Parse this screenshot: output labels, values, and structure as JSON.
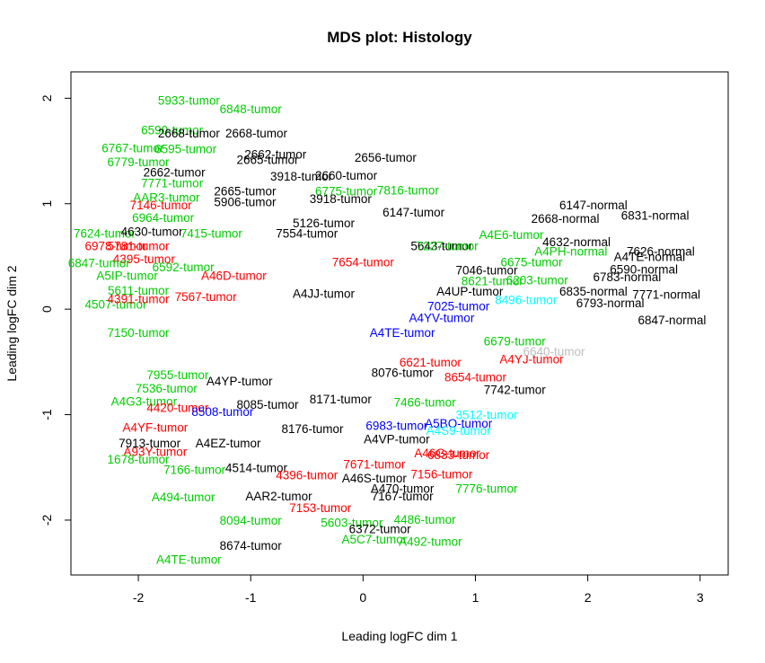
{
  "chart_data": {
    "type": "scatter",
    "title": "MDS plot: Histology",
    "xlabel": "Leading logFC dim 1",
    "ylabel": "Leading logFC dim 2",
    "xlim": [
      -2.6,
      3.25
    ],
    "ylim": [
      -2.52,
      2.25
    ],
    "xticks": [
      -2,
      -1,
      0,
      1,
      2,
      3
    ],
    "yticks": [
      -2,
      -1,
      0,
      1,
      2
    ],
    "grid": false,
    "colors": {
      "black": "#000000",
      "red": "#ff0000",
      "green": "#00cd00",
      "blue": "#0000ff",
      "cyan": "#00ffff",
      "gray": "#bebebe"
    },
    "points": [
      {
        "label": "5933-tumor",
        "x": -1.55,
        "y": 1.98,
        "color": "green"
      },
      {
        "label": "6848-tumor",
        "x": -1.0,
        "y": 1.9,
        "color": "green"
      },
      {
        "label": "6590-tumor",
        "x": -1.7,
        "y": 1.7,
        "color": "green"
      },
      {
        "label": "2668-tumor",
        "x": -1.55,
        "y": 1.67,
        "color": "black"
      },
      {
        "label": "2668-tumor",
        "x": -0.95,
        "y": 1.67,
        "color": "black"
      },
      {
        "label": "6767-tumor",
        "x": -2.05,
        "y": 1.53,
        "color": "green"
      },
      {
        "label": "6595-tumor",
        "x": -1.58,
        "y": 1.52,
        "color": "green"
      },
      {
        "label": "2662-tumor",
        "x": -0.78,
        "y": 1.47,
        "color": "black"
      },
      {
        "label": "2656-tumor",
        "x": 0.2,
        "y": 1.44,
        "color": "black"
      },
      {
        "label": "2665-tumor",
        "x": -0.85,
        "y": 1.42,
        "color": "black"
      },
      {
        "label": "6779-tumor",
        "x": -2.0,
        "y": 1.4,
        "color": "green"
      },
      {
        "label": "2662-tumor",
        "x": -1.68,
        "y": 1.3,
        "color": "black"
      },
      {
        "label": "3918-tumor",
        "x": -0.55,
        "y": 1.26,
        "color": "black"
      },
      {
        "label": "2660-tumor",
        "x": -0.15,
        "y": 1.27,
        "color": "black"
      },
      {
        "label": "7771-tumor",
        "x": -1.7,
        "y": 1.2,
        "color": "green"
      },
      {
        "label": "2665-tumor",
        "x": -1.05,
        "y": 1.12,
        "color": "black"
      },
      {
        "label": "6775-tumor",
        "x": -0.15,
        "y": 1.12,
        "color": "green"
      },
      {
        "label": "7816-tumor",
        "x": 0.4,
        "y": 1.13,
        "color": "green"
      },
      {
        "label": "AAR3-tumor",
        "x": -1.75,
        "y": 1.06,
        "color": "green"
      },
      {
        "label": "3918-tumor",
        "x": -0.2,
        "y": 1.05,
        "color": "black"
      },
      {
        "label": "5906-tumor",
        "x": -1.05,
        "y": 1.02,
        "color": "black"
      },
      {
        "label": "7146-tumor",
        "x": -1.8,
        "y": 0.99,
        "color": "red"
      },
      {
        "label": "6147-tumor",
        "x": 0.45,
        "y": 0.92,
        "color": "black"
      },
      {
        "label": "6964-tumor",
        "x": -1.78,
        "y": 0.87,
        "color": "green"
      },
      {
        "label": "5126-tumor",
        "x": -0.35,
        "y": 0.82,
        "color": "black"
      },
      {
        "label": "7624-tumor",
        "x": -2.3,
        "y": 0.72,
        "color": "green"
      },
      {
        "label": "4630-tumor",
        "x": -1.88,
        "y": 0.74,
        "color": "black"
      },
      {
        "label": "7415-tumor",
        "x": -1.35,
        "y": 0.72,
        "color": "green"
      },
      {
        "label": "7554-tumor",
        "x": -0.5,
        "y": 0.72,
        "color": "black"
      },
      {
        "label": "5643-tumor",
        "x": 0.7,
        "y": 0.6,
        "color": "black"
      },
      {
        "label": "A4E6-tumor",
        "x": 1.32,
        "y": 0.71,
        "color": "green"
      },
      {
        "label": "6978-tumor",
        "x": -2.2,
        "y": 0.6,
        "color": "red"
      },
      {
        "label": "5781-tumor",
        "x": -2.0,
        "y": 0.6,
        "color": "red"
      },
      {
        "label": "4395-tumor",
        "x": -1.95,
        "y": 0.48,
        "color": "red"
      },
      {
        "label": "6847-tumor",
        "x": -2.35,
        "y": 0.44,
        "color": "green"
      },
      {
        "label": "6592-tumor",
        "x": -1.6,
        "y": 0.4,
        "color": "green"
      },
      {
        "label": "A5IP-tumor",
        "x": -2.1,
        "y": 0.32,
        "color": "green"
      },
      {
        "label": "A46D-tumor",
        "x": -1.15,
        "y": 0.32,
        "color": "red"
      },
      {
        "label": "7046-tumor",
        "x": 1.1,
        "y": 0.37,
        "color": "black"
      },
      {
        "label": "8621-tumor",
        "x": 1.15,
        "y": 0.27,
        "color": "green"
      },
      {
        "label": "6203-tumor",
        "x": 1.55,
        "y": 0.28,
        "color": "green"
      },
      {
        "label": "5611-tumor",
        "x": -2.0,
        "y": 0.18,
        "color": "green"
      },
      {
        "label": "7567-tumor",
        "x": -1.4,
        "y": 0.12,
        "color": "red"
      },
      {
        "label": "A4UP-tumor",
        "x": 0.95,
        "y": 0.17,
        "color": "black"
      },
      {
        "label": "A4JJ-tumor",
        "x": -0.35,
        "y": 0.15,
        "color": "black"
      },
      {
        "label": "4507-tumor",
        "x": -2.2,
        "y": 0.05,
        "color": "green"
      },
      {
        "label": "4391-tumor",
        "x": -2.0,
        "y": 0.1,
        "color": "red"
      },
      {
        "label": "8496-tumor",
        "x": 1.45,
        "y": 0.09,
        "color": "cyan"
      },
      {
        "label": "6835-normal",
        "x": 2.05,
        "y": 0.17,
        "color": "black"
      },
      {
        "label": "6847-normal",
        "x": 2.75,
        "y": -0.1,
        "color": "black"
      },
      {
        "label": "7150-tumor",
        "x": -2.0,
        "y": -0.22,
        "color": "green"
      },
      {
        "label": "7536-tumor",
        "x": -1.75,
        "y": -0.75,
        "color": "green"
      },
      {
        "label": "7955-tumor",
        "x": -1.65,
        "y": -0.62,
        "color": "green"
      },
      {
        "label": "A4YP-tumor",
        "x": -1.1,
        "y": -0.68,
        "color": "black"
      },
      {
        "label": "8076-tumor",
        "x": 0.35,
        "y": -0.6,
        "color": "black"
      },
      {
        "label": "A4YJ-tumor",
        "x": 1.5,
        "y": -0.47,
        "color": "red"
      },
      {
        "label": "8654-tumor",
        "x": 1.0,
        "y": -0.64,
        "color": "red"
      },
      {
        "label": "A4G3-tumor",
        "x": -1.95,
        "y": -0.87,
        "color": "green"
      },
      {
        "label": "4420-tumor",
        "x": -1.65,
        "y": -0.93,
        "color": "red"
      },
      {
        "label": "8085-tumor",
        "x": -0.85,
        "y": -0.9,
        "color": "black"
      },
      {
        "label": "8171-tumor",
        "x": -0.2,
        "y": -0.85,
        "color": "black"
      },
      {
        "label": "7742-tumor",
        "x": 1.35,
        "y": -0.76,
        "color": "black"
      },
      {
        "label": "8508-tumor",
        "x": -1.25,
        "y": -0.97,
        "color": "blue"
      },
      {
        "label": "3512-tumor",
        "x": 1.1,
        "y": -1.0,
        "color": "cyan"
      },
      {
        "label": "A4YF-tumor",
        "x": -1.85,
        "y": -1.12,
        "color": "red"
      },
      {
        "label": "8176-tumor",
        "x": -0.45,
        "y": -1.13,
        "color": "black"
      },
      {
        "label": "6983-tumor",
        "x": 0.3,
        "y": -1.1,
        "color": "blue"
      },
      {
        "label": "A5BO-tumor",
        "x": 0.85,
        "y": -1.08,
        "color": "blue"
      },
      {
        "label": "7913-tumor",
        "x": -1.9,
        "y": -1.27,
        "color": "black"
      },
      {
        "label": "A4EZ-tumor",
        "x": -1.2,
        "y": -1.27,
        "color": "black"
      },
      {
        "label": "A4VP-tumor",
        "x": 0.3,
        "y": -1.23,
        "color": "black"
      },
      {
        "label": "A93Y-tumor",
        "x": -1.85,
        "y": -1.35,
        "color": "red"
      },
      {
        "label": "1678-tumor",
        "x": -2.0,
        "y": -1.42,
        "color": "green"
      },
      {
        "label": "7166-tumor",
        "x": -1.5,
        "y": -1.52,
        "color": "green"
      },
      {
        "label": "4514-tumor",
        "x": -0.95,
        "y": -1.5,
        "color": "black"
      },
      {
        "label": "7671-tumor",
        "x": 0.1,
        "y": -1.47,
        "color": "red"
      },
      {
        "label": "4396-tumor",
        "x": -0.5,
        "y": -1.57,
        "color": "red"
      },
      {
        "label": "A46S-tumor",
        "x": 0.1,
        "y": -1.6,
        "color": "black"
      },
      {
        "label": "7156-tumor",
        "x": 0.7,
        "y": -1.56,
        "color": "red"
      },
      {
        "label": "A470-tumor",
        "x": 0.35,
        "y": -1.7,
        "color": "black"
      },
      {
        "label": "7776-tumor",
        "x": 1.1,
        "y": -1.7,
        "color": "green"
      },
      {
        "label": "A494-tumor",
        "x": -1.6,
        "y": -1.78,
        "color": "green"
      },
      {
        "label": "AAR2-tumor",
        "x": -0.75,
        "y": -1.77,
        "color": "black"
      },
      {
        "label": "7167-tumor",
        "x": 0.35,
        "y": -1.77,
        "color": "black"
      },
      {
        "label": "7153-tumor",
        "x": -0.38,
        "y": -1.88,
        "color": "red"
      },
      {
        "label": "8094-tumor",
        "x": -1.0,
        "y": -2.0,
        "color": "green"
      },
      {
        "label": "5603-tumor",
        "x": -0.1,
        "y": -2.02,
        "color": "green"
      },
      {
        "label": "4486-tumor",
        "x": 0.55,
        "y": -1.99,
        "color": "green"
      },
      {
        "label": "6372-tumor",
        "x": 0.15,
        "y": -2.08,
        "color": "black"
      },
      {
        "label": "A5C7-tumor",
        "x": 0.1,
        "y": -2.18,
        "color": "green"
      },
      {
        "label": "A492-tumor",
        "x": 0.6,
        "y": -2.2,
        "color": "green"
      },
      {
        "label": "8674-tumor",
        "x": -1.0,
        "y": -2.24,
        "color": "black"
      },
      {
        "label": "A4TE-tumor",
        "x": -1.55,
        "y": -2.37,
        "color": "green"
      },
      {
        "label": "6147-normal",
        "x": 2.05,
        "y": 0.99,
        "color": "black"
      },
      {
        "label": "6831-normal",
        "x": 2.6,
        "y": 0.89,
        "color": "black"
      },
      {
        "label": "2668-normal",
        "x": 1.8,
        "y": 0.86,
        "color": "black"
      },
      {
        "label": "4632-normal",
        "x": 1.9,
        "y": 0.64,
        "color": "black"
      },
      {
        "label": "A4PH-normal",
        "x": 1.85,
        "y": 0.55,
        "color": "green"
      },
      {
        "label": "6590-normal",
        "x": 2.5,
        "y": 0.38,
        "color": "black"
      },
      {
        "label": "6783-normal",
        "x": 2.35,
        "y": 0.31,
        "color": "black"
      },
      {
        "label": "6793-normal",
        "x": 2.2,
        "y": 0.06,
        "color": "black"
      },
      {
        "label": "A4TE-normal",
        "x": 2.55,
        "y": 0.5,
        "color": "black"
      },
      {
        "label": "7626-normal",
        "x": 2.65,
        "y": 0.55,
        "color": "black"
      },
      {
        "label": "7771-normal",
        "x": 2.7,
        "y": 0.14,
        "color": "black"
      },
      {
        "label": "6675-tumor",
        "x": 1.5,
        "y": 0.45,
        "color": "green"
      },
      {
        "label": "6679-tumor",
        "x": 1.35,
        "y": -0.3,
        "color": "green"
      },
      {
        "label": "6640-tumor",
        "x": 1.7,
        "y": -0.4,
        "color": "gray"
      },
      {
        "label": "7466-tumor",
        "x": 0.55,
        "y": -0.88,
        "color": "green"
      },
      {
        "label": "A4S9-tumor",
        "x": 0.85,
        "y": -1.15,
        "color": "cyan"
      },
      {
        "label": "A46G-tumor",
        "x": 0.75,
        "y": -1.36,
        "color": "red"
      },
      {
        "label": "6833-tumor",
        "x": 0.85,
        "y": -1.38,
        "color": "red"
      },
      {
        "label": "A4YV-tumor",
        "x": 0.7,
        "y": -0.08,
        "color": "blue"
      },
      {
        "label": "A4TE-tumor",
        "x": 0.35,
        "y": -0.22,
        "color": "blue"
      },
      {
        "label": "7025-tumor",
        "x": 0.85,
        "y": 0.03,
        "color": "blue"
      },
      {
        "label": "7654-tumor",
        "x": 0.0,
        "y": 0.45,
        "color": "red"
      },
      {
        "label": "7227-tumor",
        "x": 0.75,
        "y": 0.6,
        "color": "green"
      },
      {
        "label": "6621-tumor",
        "x": 0.6,
        "y": -0.5,
        "color": "red"
      }
    ]
  }
}
